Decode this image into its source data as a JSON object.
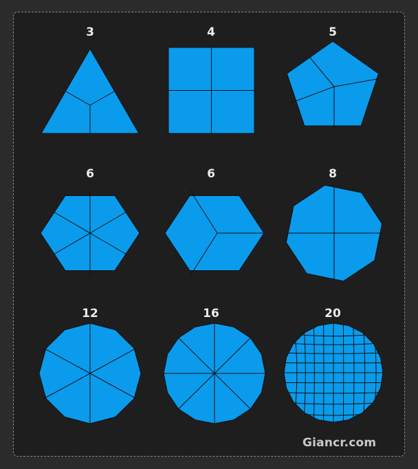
{
  "colors": {
    "background": "#2b2b2b",
    "panel": "#1e1e1e",
    "panel_border": "#8a8a8a",
    "shape_fill": "#0a9bec",
    "edge": "#111111",
    "label": "#ececec"
  },
  "cells": [
    {
      "label": "3",
      "shape": "triangle"
    },
    {
      "label": "4",
      "shape": "square"
    },
    {
      "label": "5",
      "shape": "pentagon"
    },
    {
      "label": "6",
      "shape": "hexagon-spokes"
    },
    {
      "label": "6",
      "shape": "hexagon-cube"
    },
    {
      "label": "8",
      "shape": "octagon"
    },
    {
      "label": "12",
      "shape": "dodecagon"
    },
    {
      "label": "16",
      "shape": "hexadecagon"
    },
    {
      "label": "20",
      "shape": "circle-grid"
    }
  ],
  "watermark": "Giancr.com"
}
